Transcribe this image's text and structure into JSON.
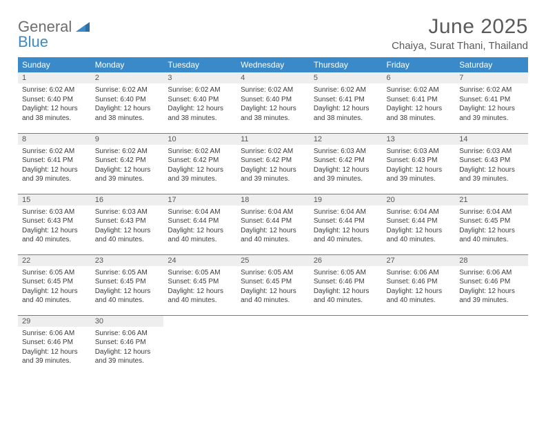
{
  "brand": {
    "word1": "General",
    "word2": "Blue",
    "text_color": "#6d6d6d",
    "accent_color": "#3a8ac9"
  },
  "title": "June 2025",
  "location": "Chaiya, Surat Thani, Thailand",
  "colors": {
    "header_bg": "#3a8ac9",
    "header_text": "#ffffff",
    "daynum_bg": "#eeeeee",
    "border": "#3a8ac9",
    "page_bg": "#ffffff",
    "body_text": "#3a3a3a"
  },
  "weekdays": [
    "Sunday",
    "Monday",
    "Tuesday",
    "Wednesday",
    "Thursday",
    "Friday",
    "Saturday"
  ],
  "weeks": [
    [
      {
        "day": "1",
        "sunrise": "6:02 AM",
        "sunset": "6:40 PM",
        "daylight": "12 hours and 38 minutes."
      },
      {
        "day": "2",
        "sunrise": "6:02 AM",
        "sunset": "6:40 PM",
        "daylight": "12 hours and 38 minutes."
      },
      {
        "day": "3",
        "sunrise": "6:02 AM",
        "sunset": "6:40 PM",
        "daylight": "12 hours and 38 minutes."
      },
      {
        "day": "4",
        "sunrise": "6:02 AM",
        "sunset": "6:40 PM",
        "daylight": "12 hours and 38 minutes."
      },
      {
        "day": "5",
        "sunrise": "6:02 AM",
        "sunset": "6:41 PM",
        "daylight": "12 hours and 38 minutes."
      },
      {
        "day": "6",
        "sunrise": "6:02 AM",
        "sunset": "6:41 PM",
        "daylight": "12 hours and 38 minutes."
      },
      {
        "day": "7",
        "sunrise": "6:02 AM",
        "sunset": "6:41 PM",
        "daylight": "12 hours and 39 minutes."
      }
    ],
    [
      {
        "day": "8",
        "sunrise": "6:02 AM",
        "sunset": "6:41 PM",
        "daylight": "12 hours and 39 minutes."
      },
      {
        "day": "9",
        "sunrise": "6:02 AM",
        "sunset": "6:42 PM",
        "daylight": "12 hours and 39 minutes."
      },
      {
        "day": "10",
        "sunrise": "6:02 AM",
        "sunset": "6:42 PM",
        "daylight": "12 hours and 39 minutes."
      },
      {
        "day": "11",
        "sunrise": "6:02 AM",
        "sunset": "6:42 PM",
        "daylight": "12 hours and 39 minutes."
      },
      {
        "day": "12",
        "sunrise": "6:03 AM",
        "sunset": "6:42 PM",
        "daylight": "12 hours and 39 minutes."
      },
      {
        "day": "13",
        "sunrise": "6:03 AM",
        "sunset": "6:43 PM",
        "daylight": "12 hours and 39 minutes."
      },
      {
        "day": "14",
        "sunrise": "6:03 AM",
        "sunset": "6:43 PM",
        "daylight": "12 hours and 39 minutes."
      }
    ],
    [
      {
        "day": "15",
        "sunrise": "6:03 AM",
        "sunset": "6:43 PM",
        "daylight": "12 hours and 40 minutes."
      },
      {
        "day": "16",
        "sunrise": "6:03 AM",
        "sunset": "6:43 PM",
        "daylight": "12 hours and 40 minutes."
      },
      {
        "day": "17",
        "sunrise": "6:04 AM",
        "sunset": "6:44 PM",
        "daylight": "12 hours and 40 minutes."
      },
      {
        "day": "18",
        "sunrise": "6:04 AM",
        "sunset": "6:44 PM",
        "daylight": "12 hours and 40 minutes."
      },
      {
        "day": "19",
        "sunrise": "6:04 AM",
        "sunset": "6:44 PM",
        "daylight": "12 hours and 40 minutes."
      },
      {
        "day": "20",
        "sunrise": "6:04 AM",
        "sunset": "6:44 PM",
        "daylight": "12 hours and 40 minutes."
      },
      {
        "day": "21",
        "sunrise": "6:04 AM",
        "sunset": "6:45 PM",
        "daylight": "12 hours and 40 minutes."
      }
    ],
    [
      {
        "day": "22",
        "sunrise": "6:05 AM",
        "sunset": "6:45 PM",
        "daylight": "12 hours and 40 minutes."
      },
      {
        "day": "23",
        "sunrise": "6:05 AM",
        "sunset": "6:45 PM",
        "daylight": "12 hours and 40 minutes."
      },
      {
        "day": "24",
        "sunrise": "6:05 AM",
        "sunset": "6:45 PM",
        "daylight": "12 hours and 40 minutes."
      },
      {
        "day": "25",
        "sunrise": "6:05 AM",
        "sunset": "6:45 PM",
        "daylight": "12 hours and 40 minutes."
      },
      {
        "day": "26",
        "sunrise": "6:05 AM",
        "sunset": "6:46 PM",
        "daylight": "12 hours and 40 minutes."
      },
      {
        "day": "27",
        "sunrise": "6:06 AM",
        "sunset": "6:46 PM",
        "daylight": "12 hours and 40 minutes."
      },
      {
        "day": "28",
        "sunrise": "6:06 AM",
        "sunset": "6:46 PM",
        "daylight": "12 hours and 39 minutes."
      }
    ],
    [
      {
        "day": "29",
        "sunrise": "6:06 AM",
        "sunset": "6:46 PM",
        "daylight": "12 hours and 39 minutes."
      },
      {
        "day": "30",
        "sunrise": "6:06 AM",
        "sunset": "6:46 PM",
        "daylight": "12 hours and 39 minutes."
      },
      null,
      null,
      null,
      null,
      null
    ]
  ],
  "labels": {
    "sunrise": "Sunrise:",
    "sunset": "Sunset:",
    "daylight": "Daylight:"
  }
}
